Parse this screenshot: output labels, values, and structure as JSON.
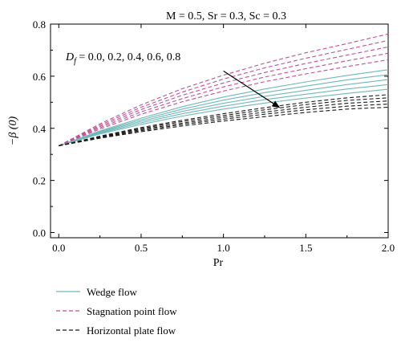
{
  "chart_data": {
    "type": "line",
    "title": "M = 0.5, Sr = 0.3, Sc = 0.3",
    "xlabel": "Pr",
    "ylabel": "−β (0)",
    "xlim": [
      -0.05,
      2.0
    ],
    "ylim": [
      -0.02,
      0.8
    ],
    "xticks": [
      0.0,
      0.5,
      1.0,
      1.5,
      2.0
    ],
    "xtick_labels": [
      "0.0",
      "0.5",
      "1.0",
      "1.5",
      "2.0"
    ],
    "yticks": [
      0.0,
      0.2,
      0.4,
      0.6,
      0.8
    ],
    "ytick_labels": [
      "0.0",
      "0.2",
      "0.4",
      "0.6",
      "0.8"
    ],
    "grid": false,
    "legend_position": "below plot, left",
    "annotation": {
      "prefix": "D",
      "subscript": "f",
      "text": " = 0.0, 0.2, 0.4, 0.6, 0.8",
      "arrow_from": [
        1.0,
        0.62
      ],
      "arrow_to": [
        1.34,
        0.48
      ]
    },
    "x": [
      0.0,
      0.25,
      0.5,
      0.75,
      1.0,
      1.25,
      1.5,
      1.75,
      2.0
    ],
    "series": [
      {
        "group": "Wedge flow",
        "color": "#6fb8b8",
        "dash": "solid",
        "values": [
          0.333,
          0.39,
          0.439,
          0.483,
          0.52,
          0.551,
          0.578,
          0.603,
          0.625
        ]
      },
      {
        "group": "Wedge flow",
        "color": "#6fb8b8",
        "dash": "solid",
        "values": [
          0.333,
          0.387,
          0.433,
          0.474,
          0.508,
          0.537,
          0.562,
          0.586,
          0.606
        ]
      },
      {
        "group": "Wedge flow",
        "color": "#6fb8b8",
        "dash": "solid",
        "values": [
          0.333,
          0.384,
          0.427,
          0.465,
          0.496,
          0.523,
          0.546,
          0.568,
          0.587
        ]
      },
      {
        "group": "Wedge flow",
        "color": "#6fb8b8",
        "dash": "solid",
        "values": [
          0.333,
          0.381,
          0.421,
          0.456,
          0.485,
          0.51,
          0.531,
          0.551,
          0.568
        ]
      },
      {
        "group": "Wedge flow",
        "color": "#6fb8b8",
        "dash": "solid",
        "values": [
          0.333,
          0.378,
          0.415,
          0.447,
          0.474,
          0.497,
          0.516,
          0.534,
          0.55
        ]
      },
      {
        "group": "Stagnation point flow",
        "color": "#c0509a",
        "dash": "dashed",
        "values": [
          0.333,
          0.417,
          0.49,
          0.552,
          0.604,
          0.65,
          0.69,
          0.725,
          0.762
        ]
      },
      {
        "group": "Stagnation point flow",
        "color": "#c0509a",
        "dash": "dashed",
        "values": [
          0.333,
          0.412,
          0.481,
          0.539,
          0.589,
          0.632,
          0.669,
          0.703,
          0.737
        ]
      },
      {
        "group": "Stagnation point flow",
        "color": "#c0509a",
        "dash": "dashed",
        "values": [
          0.333,
          0.407,
          0.472,
          0.527,
          0.574,
          0.614,
          0.649,
          0.681,
          0.712
        ]
      },
      {
        "group": "Stagnation point flow",
        "color": "#c0509a",
        "dash": "dashed",
        "values": [
          0.333,
          0.402,
          0.463,
          0.514,
          0.559,
          0.597,
          0.629,
          0.659,
          0.688
        ]
      },
      {
        "group": "Stagnation point flow",
        "color": "#c0509a",
        "dash": "dashed",
        "values": [
          0.333,
          0.397,
          0.454,
          0.502,
          0.543,
          0.579,
          0.609,
          0.637,
          0.663
        ]
      },
      {
        "group": "Horizontal plate flow",
        "color": "#1a1a1a",
        "dash": "dashed",
        "values": [
          0.333,
          0.37,
          0.403,
          0.431,
          0.456,
          0.479,
          0.5,
          0.517,
          0.529
        ]
      },
      {
        "group": "Horizontal plate flow",
        "color": "#1a1a1a",
        "dash": "dashed",
        "values": [
          0.333,
          0.368,
          0.399,
          0.426,
          0.449,
          0.471,
          0.491,
          0.507,
          0.517
        ]
      },
      {
        "group": "Horizontal plate flow",
        "color": "#1a1a1a",
        "dash": "dashed",
        "values": [
          0.333,
          0.366,
          0.395,
          0.42,
          0.442,
          0.462,
          0.481,
          0.496,
          0.505
        ]
      },
      {
        "group": "Horizontal plate flow",
        "color": "#1a1a1a",
        "dash": "dashed",
        "values": [
          0.333,
          0.364,
          0.391,
          0.415,
          0.435,
          0.454,
          0.471,
          0.485,
          0.493
        ]
      },
      {
        "group": "Horizontal plate flow",
        "color": "#1a1a1a",
        "dash": "dashed",
        "values": [
          0.333,
          0.362,
          0.387,
          0.409,
          0.428,
          0.445,
          0.461,
          0.474,
          0.481
        ]
      }
    ],
    "legend": [
      {
        "label": "Wedge flow",
        "color": "#6fb8b8",
        "dash": "solid"
      },
      {
        "label": "Stagnation point flow",
        "color": "#c0509a",
        "dash": "dashed"
      },
      {
        "label": "Horizontal plate flow",
        "color": "#1a1a1a",
        "dash": "dashed"
      }
    ]
  }
}
